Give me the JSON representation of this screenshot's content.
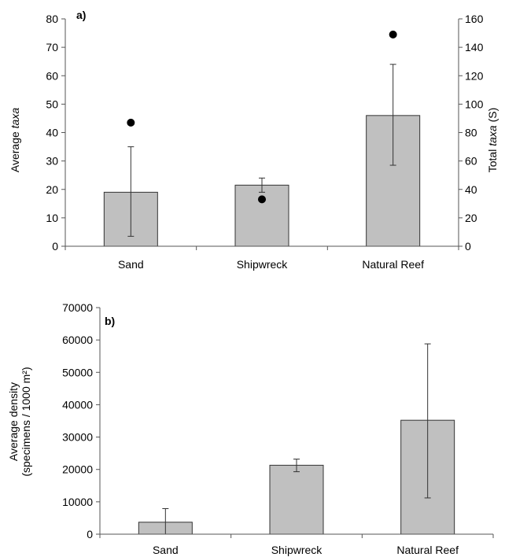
{
  "chart_data": [
    {
      "type": "bar",
      "panel_label": "a)",
      "categories": [
        "Sand",
        "Shipwreck",
        "Natural Reef"
      ],
      "series": [
        {
          "values": [
            19,
            21.5,
            46
          ],
          "error_low": [
            3.5,
            19,
            28.5
          ],
          "error_high": [
            35,
            24,
            64
          ],
          "axis": "left",
          "kind": "bar",
          "color": "#c0c0c0"
        },
        {
          "values": [
            87,
            33,
            149
          ],
          "axis": "right",
          "kind": "scatter",
          "color": "#000000"
        }
      ],
      "ylabel": "Average ",
      "ylabel_italic": "taxa",
      "ylim": [
        0,
        80
      ],
      "yticks": [
        "0",
        "10",
        "20",
        "30",
        "40",
        "50",
        "60",
        "70",
        "80"
      ],
      "y2label": "Total ",
      "y2label_italic": "taxa",
      "y2label_suffix": " (S)",
      "y2lim": [
        0,
        160
      ],
      "y2ticks": [
        "0",
        "20",
        "40",
        "60",
        "80",
        "100",
        "120",
        "140",
        "160"
      ],
      "grid": false
    },
    {
      "type": "bar",
      "panel_label": "b)",
      "categories": [
        "Sand",
        "Shipwreck",
        "Natural Reef"
      ],
      "series": [
        {
          "values": [
            3700,
            21300,
            35200
          ],
          "error_low": [
            0,
            19300,
            11200
          ],
          "error_high": [
            7900,
            23200,
            58800
          ],
          "color": "#c0c0c0"
        }
      ],
      "ylabel_line1": "Average density",
      "ylabel_line2": "(specimens / 1000 m²)",
      "ylim": [
        0,
        70000
      ],
      "yticks": [
        "0",
        "10000",
        "20000",
        "30000",
        "40000",
        "50000",
        "60000",
        "70000"
      ],
      "grid": false
    }
  ]
}
